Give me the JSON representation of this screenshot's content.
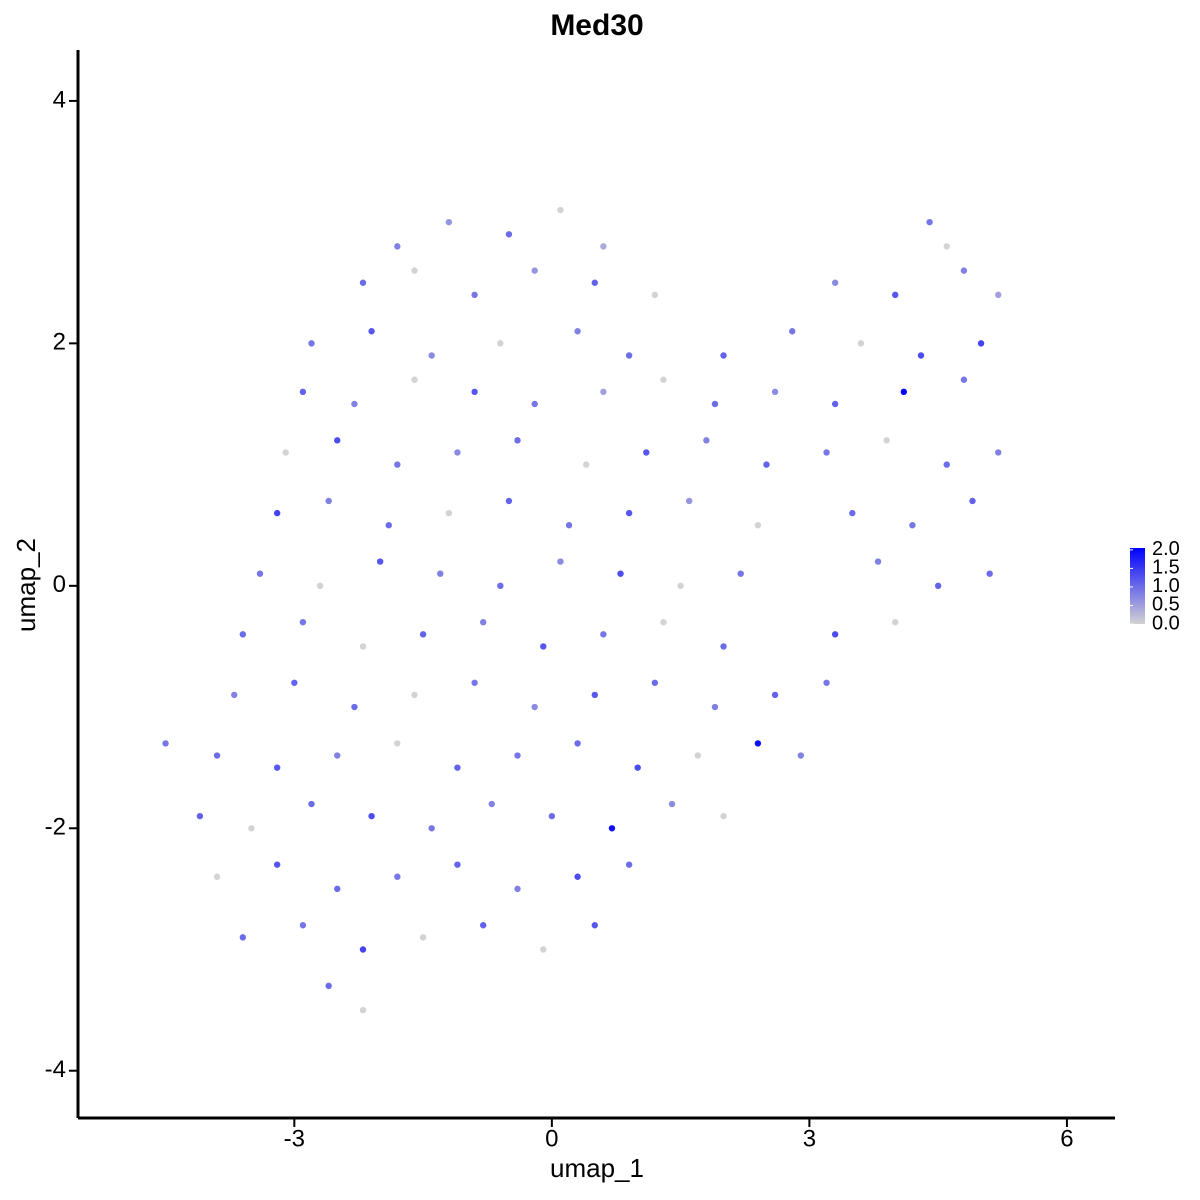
{
  "chart_data": {
    "type": "scatter",
    "title": "Med30",
    "x_label": "umap_1",
    "y_label": "umap_2",
    "xlim": [
      -5.52,
      6.56
    ],
    "ylim": [
      -4.39,
      4.42
    ],
    "xticks": [
      -3,
      0,
      3,
      6
    ],
    "yticks": [
      -4,
      -2,
      0,
      2,
      4
    ],
    "color_low": "#d3d3d3",
    "color_high": "#0000ff",
    "colorbar_lim": [
      0,
      2.05
    ],
    "colorbar_ticks": [
      {
        "value": 0,
        "label": "0.0"
      },
      {
        "value": 0.5,
        "label": "0.5"
      },
      {
        "value": 1,
        "label": "1.0"
      },
      {
        "value": 1.5,
        "label": "1.5"
      },
      {
        "value": 2,
        "label": "2.0"
      }
    ],
    "x": [
      -1.8,
      -1.2,
      -0.5,
      0.1,
      0.6,
      4.4,
      4.6,
      -2.2,
      -1.6,
      -0.9,
      -0.2,
      0.5,
      1.2,
      3.3,
      4.0,
      4.8,
      5.2,
      -2.8,
      -2.1,
      -1.4,
      -0.6,
      0.3,
      0.9,
      2.0,
      2.8,
      3.6,
      4.3,
      5.0,
      -2.9,
      -2.3,
      -1.6,
      -0.9,
      -0.2,
      0.6,
      1.3,
      1.9,
      2.6,
      3.3,
      4.1,
      4.8,
      -3.1,
      -2.5,
      -1.8,
      -1.1,
      -0.4,
      0.4,
      1.1,
      1.8,
      2.5,
      3.2,
      3.9,
      4.6,
      5.2,
      -3.2,
      -2.6,
      -1.9,
      -1.2,
      -0.5,
      0.2,
      0.9,
      1.6,
      2.4,
      3.5,
      4.2,
      4.9,
      -3.4,
      -2.7,
      -2.0,
      -1.3,
      -0.6,
      0.1,
      0.8,
      1.5,
      2.2,
      3.8,
      4.5,
      5.1,
      -3.6,
      -2.9,
      -2.2,
      -1.5,
      -0.8,
      -0.1,
      0.6,
      1.3,
      2.0,
      3.3,
      4.0,
      -3.7,
      -3.0,
      -2.3,
      -1.6,
      -0.9,
      -0.2,
      0.5,
      1.2,
      1.9,
      2.6,
      3.2,
      -4.5,
      -3.9,
      -3.2,
      -2.5,
      -1.8,
      -1.1,
      -0.4,
      0.3,
      1.0,
      1.7,
      2.4,
      2.9,
      -4.1,
      -3.5,
      -2.8,
      -2.1,
      -1.4,
      -0.7,
      0.0,
      0.7,
      1.4,
      2.0,
      -3.9,
      -3.2,
      -2.5,
      -1.8,
      -1.1,
      -0.4,
      0.3,
      0.9,
      -3.6,
      -2.9,
      -2.2,
      -1.5,
      -0.8,
      -0.1,
      0.5,
      -2.6,
      -2.2
    ],
    "y": [
      2.8,
      3.0,
      2.9,
      3.1,
      2.8,
      3.0,
      2.8,
      2.5,
      2.6,
      2.4,
      2.6,
      2.5,
      2.4,
      2.5,
      2.4,
      2.6,
      2.4,
      2.0,
      2.1,
      1.9,
      2.0,
      2.1,
      1.9,
      1.9,
      2.1,
      2.0,
      1.9,
      2.0,
      1.6,
      1.5,
      1.7,
      1.6,
      1.5,
      1.6,
      1.7,
      1.5,
      1.6,
      1.5,
      1.6,
      1.7,
      1.1,
      1.2,
      1.0,
      1.1,
      1.2,
      1.0,
      1.1,
      1.2,
      1.0,
      1.1,
      1.2,
      1.0,
      1.1,
      0.6,
      0.7,
      0.5,
      0.6,
      0.7,
      0.5,
      0.6,
      0.7,
      0.5,
      0.6,
      0.5,
      0.7,
      0.1,
      0.0,
      0.2,
      0.1,
      0.0,
      0.2,
      0.1,
      0.0,
      0.1,
      0.2,
      0.0,
      0.1,
      -0.4,
      -0.3,
      -0.5,
      -0.4,
      -0.3,
      -0.5,
      -0.4,
      -0.3,
      -0.5,
      -0.4,
      -0.3,
      -0.9,
      -0.8,
      -1.0,
      -0.9,
      -0.8,
      -1.0,
      -0.9,
      -0.8,
      -1.0,
      -0.9,
      -0.8,
      -1.3,
      -1.4,
      -1.5,
      -1.4,
      -1.3,
      -1.5,
      -1.4,
      -1.3,
      -1.5,
      -1.4,
      -1.3,
      -1.4,
      -1.9,
      -2.0,
      -1.8,
      -1.9,
      -2.0,
      -1.8,
      -1.9,
      -2.0,
      -1.8,
      -1.9,
      -2.4,
      -2.3,
      -2.5,
      -2.4,
      -2.3,
      -2.5,
      -2.4,
      -2.3,
      -2.9,
      -2.8,
      -3.0,
      -2.9,
      -2.8,
      -3.0,
      -2.8,
      -3.3,
      -3.5
    ],
    "values": [
      0.8,
      0.6,
      1.0,
      0.0,
      0.4,
      0.9,
      0.0,
      1.0,
      0.0,
      0.9,
      0.6,
      1.1,
      0.0,
      0.7,
      1.2,
      0.8,
      0.5,
      0.9,
      1.2,
      0.7,
      0.0,
      0.8,
      1.0,
      1.1,
      0.9,
      0.0,
      1.3,
      1.4,
      1.1,
      0.8,
      0.0,
      1.2,
      0.9,
      0.5,
      0.0,
      1.0,
      0.7,
      1.1,
      2.0,
      0.9,
      0.0,
      1.3,
      0.9,
      0.7,
      1.0,
      0.0,
      1.2,
      0.8,
      1.1,
      0.9,
      0.0,
      1.0,
      0.8,
      1.4,
      0.8,
      1.0,
      0.0,
      1.1,
      0.9,
      1.2,
      0.6,
      0.0,
      1.0,
      0.9,
      1.1,
      0.9,
      0.0,
      1.2,
      0.8,
      1.0,
      0.7,
      1.3,
      0.0,
      0.9,
      0.8,
      1.1,
      1.0,
      1.0,
      0.9,
      0.0,
      1.1,
      0.8,
      1.2,
      0.9,
      0.0,
      1.0,
      1.3,
      0.0,
      0.8,
      1.1,
      1.0,
      0.0,
      0.9,
      0.7,
      1.2,
      1.0,
      0.8,
      1.1,
      0.9,
      0.9,
      1.0,
      1.2,
      0.8,
      0.0,
      1.1,
      0.9,
      1.0,
      1.3,
      0.0,
      1.9,
      0.8,
      1.1,
      0.0,
      1.0,
      1.3,
      0.9,
      0.8,
      1.0,
      1.9,
      0.7,
      0.0,
      0.0,
      1.2,
      1.0,
      0.9,
      1.1,
      0.8,
      1.3,
      1.0,
      1.0,
      0.9,
      1.4,
      0.0,
      1.1,
      0.0,
      1.2,
      1.0,
      0.0
    ]
  }
}
